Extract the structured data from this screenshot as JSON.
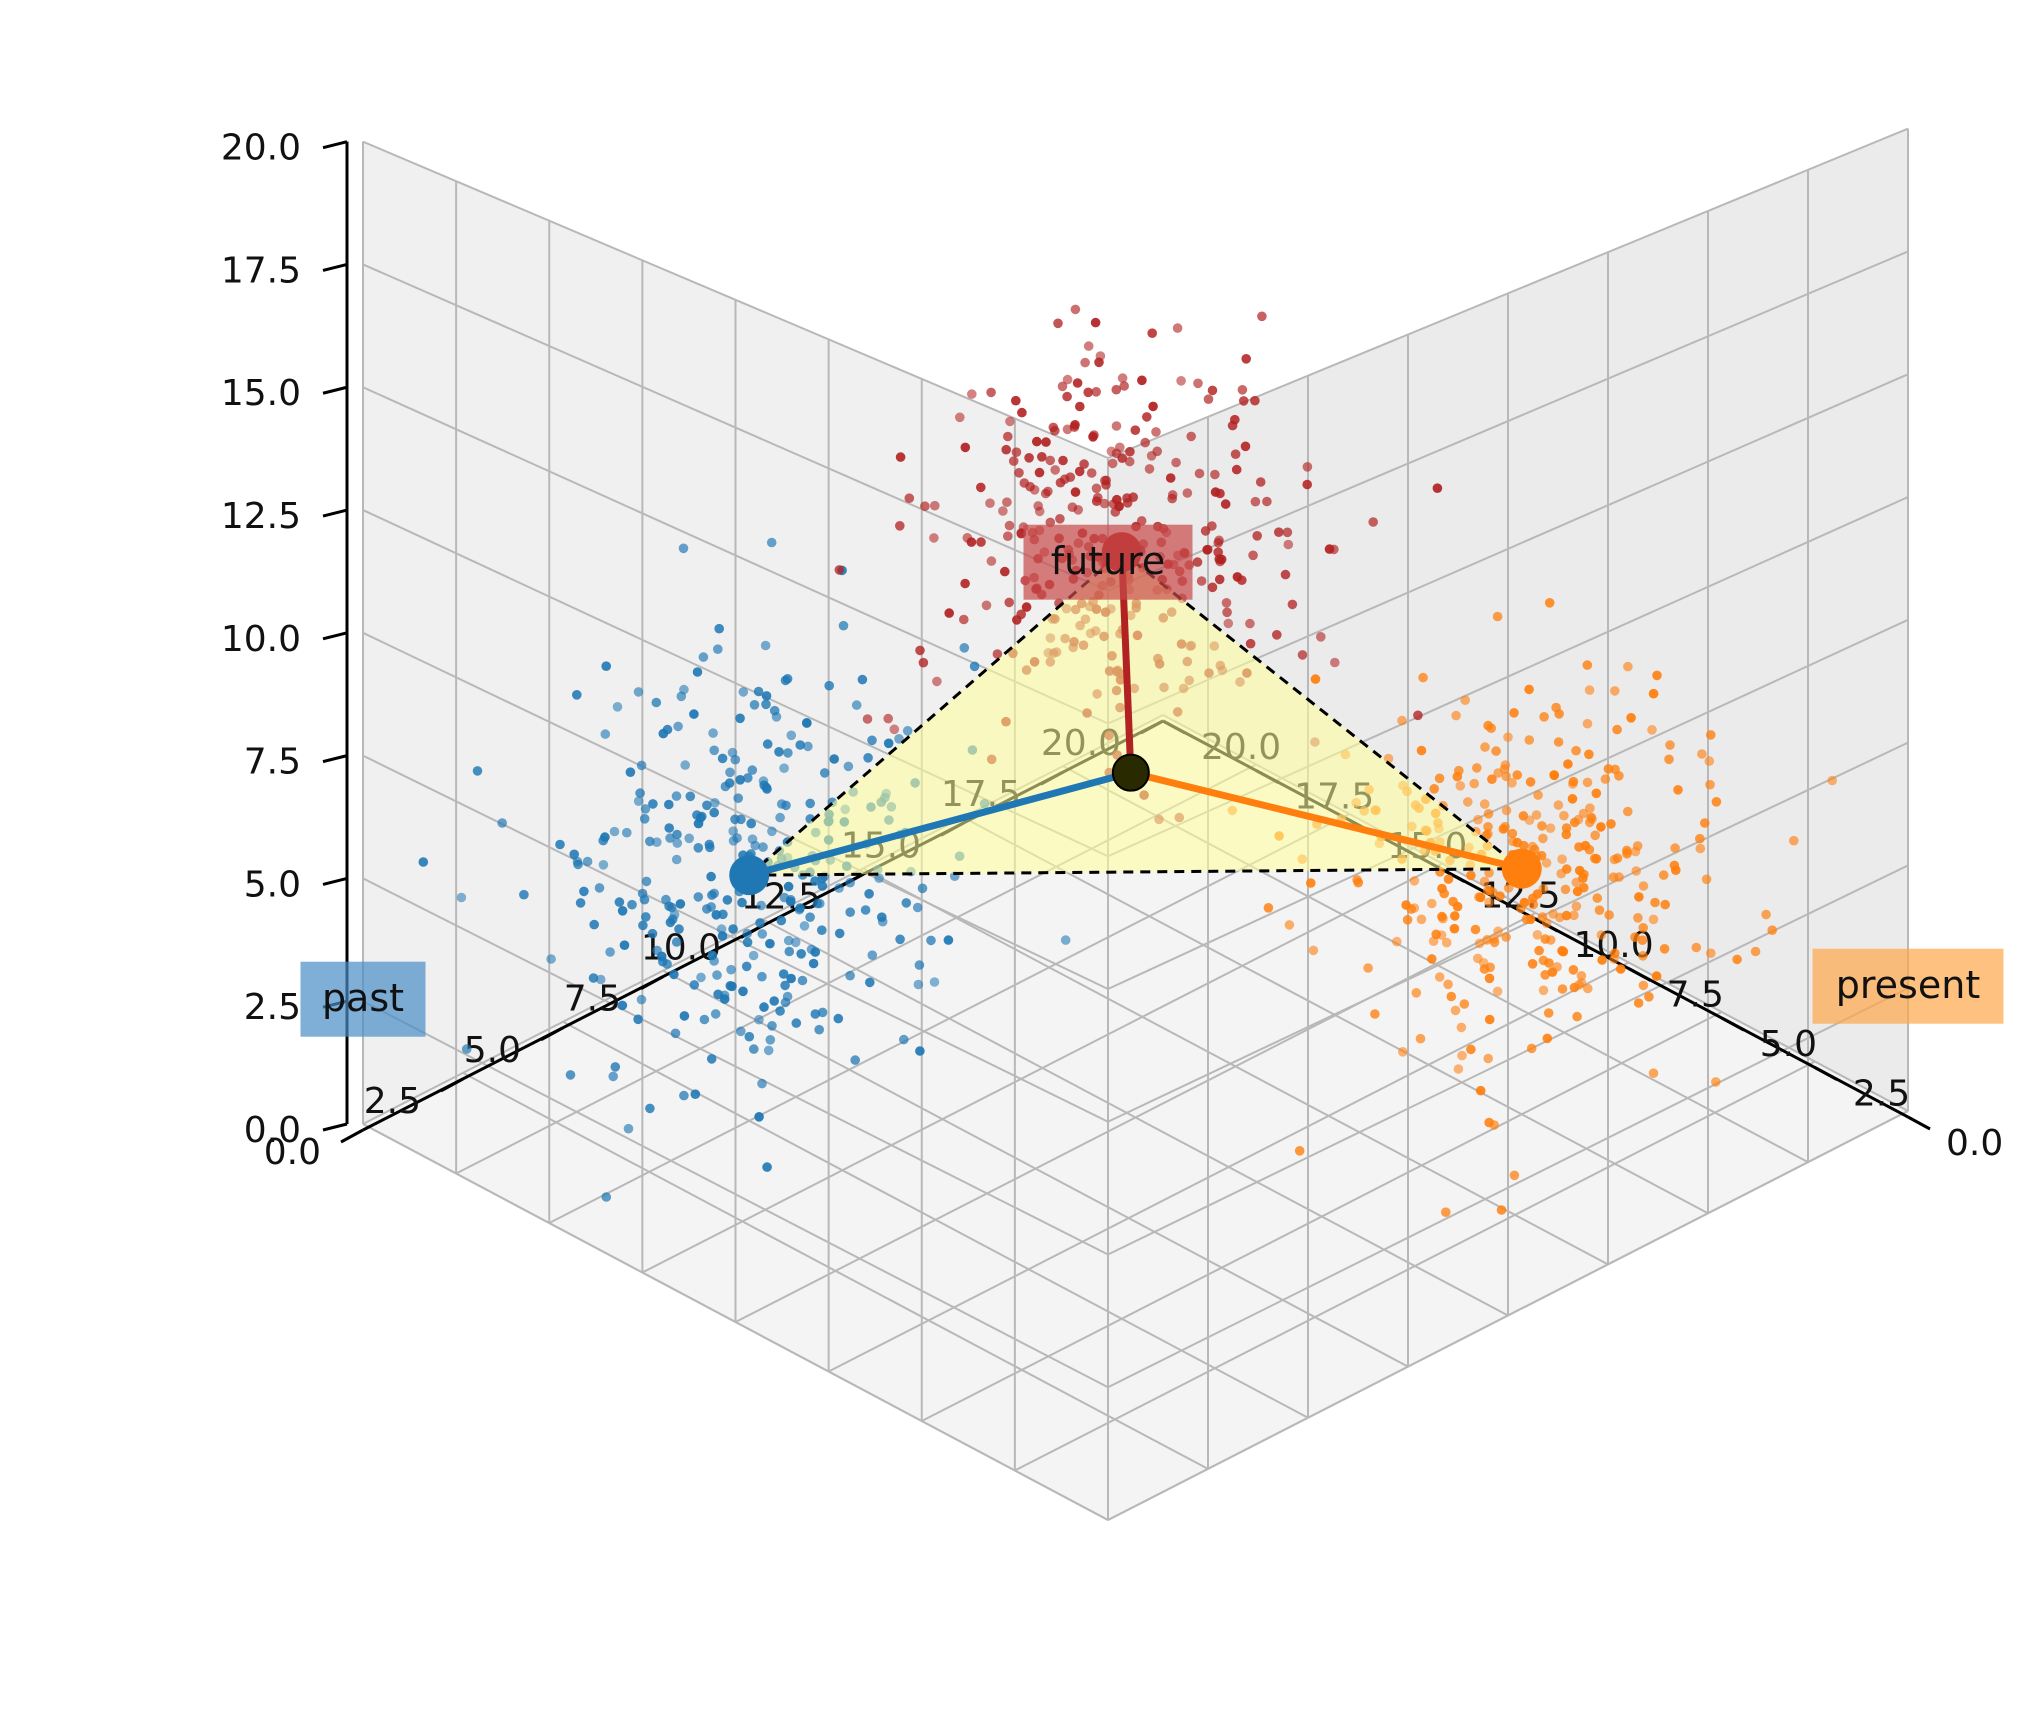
{
  "chart_data": {
    "type": "scatter",
    "title": "",
    "projection": "3d",
    "x_ticks": [
      "0.0",
      "2.5",
      "5.0",
      "7.5",
      "10.0",
      "12.5",
      "15.0",
      "17.5",
      "20.0"
    ],
    "y_ticks": [
      "0.0",
      "2.5",
      "5.0",
      "7.5",
      "10.0",
      "12.5",
      "15.0",
      "17.5",
      "20.0"
    ],
    "z_ticks": [
      "0.0",
      "2.5",
      "5.0",
      "7.5",
      "10.0",
      "12.5",
      "15.0",
      "17.5",
      "20.0"
    ],
    "xlim": [
      0,
      20
    ],
    "ylim": [
      0,
      20
    ],
    "zlim": [
      0,
      20
    ],
    "grid": true,
    "series": [
      {
        "name": "past",
        "color": "#1f77b4",
        "center": [
          15,
          5,
          5
        ],
        "count": 330,
        "spread": 1.8
      },
      {
        "name": "present",
        "color": "#ff7f0e",
        "center": [
          5,
          15,
          5
        ],
        "count": 330,
        "spread": 1.8
      },
      {
        "name": "future",
        "color": "#b22222",
        "center": [
          5,
          5,
          15
        ],
        "count": 330,
        "spread": 1.8
      }
    ],
    "centroid": [
      8.3,
      8.3,
      8.3
    ],
    "annotations": [
      {
        "text": "past",
        "color": "#4a8dc6",
        "at": [
          20,
          0,
          2.5
        ]
      },
      {
        "text": "present",
        "color": "#ffa84a",
        "at": [
          0,
          20,
          2.5
        ]
      },
      {
        "text": "future",
        "color": "#c94a4a",
        "at": [
          0,
          0,
          18
        ]
      }
    ]
  }
}
